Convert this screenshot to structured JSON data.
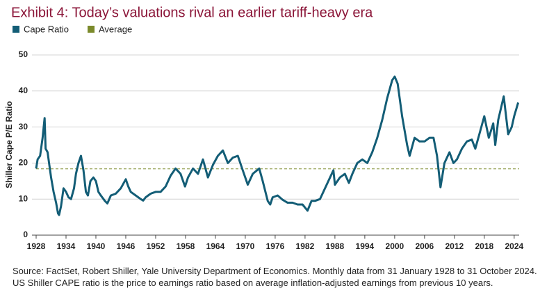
{
  "chart_data": {
    "type": "line",
    "title": "Exhibit 4: Today’s valuations rival an earlier tariff-heavy era",
    "y_label": "Shiller Cape P/E Ratio",
    "x": [
      1928.0,
      1928.3,
      1928.8,
      1929.3,
      1929.7,
      1929.9,
      1930.3,
      1930.6,
      1931.0,
      1931.5,
      1932.0,
      1932.4,
      1932.6,
      1933.0,
      1933.5,
      1934.0,
      1934.5,
      1935.0,
      1935.6,
      1936.0,
      1936.5,
      1937.0,
      1937.5,
      1938.0,
      1938.4,
      1938.9,
      1939.5,
      1940.0,
      1940.5,
      1941.0,
      1941.8,
      1942.3,
      1943.0,
      1944.0,
      1945.0,
      1946.0,
      1946.5,
      1947.0,
      1948.0,
      1949.0,
      1949.5,
      1950.0,
      1951.0,
      1952.0,
      1953.0,
      1954.0,
      1955.0,
      1956.0,
      1957.0,
      1957.9,
      1958.5,
      1959.5,
      1960.5,
      1961.5,
      1962.5,
      1963.5,
      1964.5,
      1965.5,
      1966.5,
      1967.5,
      1968.5,
      1969.5,
      1970.5,
      1971.5,
      1972.8,
      1973.5,
      1974.5,
      1975.0,
      1975.5,
      1976.5,
      1977.5,
      1978.5,
      1979.5,
      1980.5,
      1981.5,
      1982.5,
      1983.3,
      1984.0,
      1985.0,
      1986.0,
      1987.7,
      1988.0,
      1989.0,
      1990.0,
      1990.8,
      1991.5,
      1992.5,
      1993.5,
      1994.5,
      1995.5,
      1996.5,
      1997.5,
      1998.5,
      1999.5,
      2000.0,
      2000.6,
      2001.5,
      2002.5,
      2003.0,
      2004.0,
      2005.0,
      2006.0,
      2007.0,
      2007.8,
      2008.5,
      2009.2,
      2010.0,
      2011.0,
      2011.8,
      2012.5,
      2013.5,
      2014.5,
      2015.5,
      2016.2,
      2017.0,
      2018.0,
      2018.9,
      2019.8,
      2020.2,
      2020.8,
      2021.9,
      2022.8,
      2023.5,
      2024.0,
      2024.8
    ],
    "series": [
      {
        "name": "Cape Ratio",
        "color": "#135d76",
        "values": [
          18.5,
          21,
          22,
          27,
          32.5,
          24,
          23,
          20,
          16,
          12,
          9,
          6,
          5.6,
          8,
          13,
          12,
          10.5,
          10,
          13,
          17,
          20,
          22,
          18,
          12,
          11,
          15,
          16,
          15,
          12,
          11,
          9.5,
          8.8,
          11,
          11.5,
          13,
          15.5,
          13.5,
          12,
          11,
          10,
          9.6,
          10.5,
          11.5,
          12,
          12,
          13.5,
          16.5,
          18.5,
          17,
          13.5,
          16,
          18.5,
          17,
          21,
          16,
          19.5,
          22,
          23.5,
          20,
          21.5,
          22,
          18,
          14,
          17,
          18.5,
          15,
          9.5,
          8.5,
          10.5,
          11,
          9.8,
          9,
          9,
          8.5,
          8.5,
          6.8,
          9.5,
          9.5,
          10,
          13,
          18,
          14,
          16,
          17,
          14.5,
          17,
          20,
          21,
          20,
          23,
          27,
          32,
          38,
          43,
          44,
          42,
          33,
          25,
          22,
          27,
          26,
          26,
          27,
          27,
          22,
          13.3,
          20,
          23,
          20,
          21,
          24,
          26,
          26.5,
          24,
          28,
          33,
          27,
          31,
          25,
          32,
          38.5,
          28,
          30,
          33,
          36.8
        ]
      }
    ],
    "average": {
      "name": "Average",
      "color": "#7b8a2b",
      "value": 18.4
    },
    "xlim": [
      1928,
      2025
    ],
    "xticks": [
      1928,
      1934,
      1940,
      1946,
      1952,
      1958,
      1964,
      1970,
      1976,
      1982,
      1988,
      1994,
      2000,
      2006,
      2012,
      2018,
      2024
    ],
    "ylim": [
      0,
      50
    ],
    "yticks": [
      0,
      10,
      20,
      30,
      40,
      50
    ],
    "grid": true
  },
  "source": "Source: FactSet, Robert Shiller, Yale University Department of Economics. Monthly data from 31 January 1928 to 31 October 2024. US Shiller CAPE ratio is the price to earnings ratio based on average inflation-adjusted earnings from previous 10 years."
}
